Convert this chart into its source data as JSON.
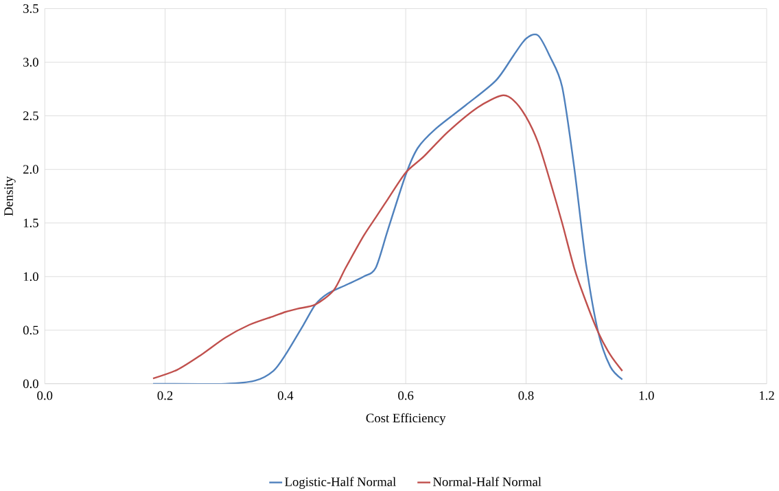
{
  "chart_data": {
    "type": "line",
    "xlabel": "Cost Efficiency",
    "ylabel": "Density",
    "xlim": [
      0,
      1.2
    ],
    "ylim": [
      0,
      3.5
    ],
    "xticks": [
      {
        "value": 0,
        "label": "0.0"
      },
      0.2,
      0.4,
      0.6,
      0.8,
      {
        "value": 1,
        "label": "1.0"
      },
      1.2
    ],
    "yticks": [
      {
        "value": 0,
        "label": "0.0"
      },
      0.5,
      {
        "value": 1,
        "label": "1.0"
      },
      1.5,
      {
        "value": 2,
        "label": "2.0"
      },
      2.5,
      {
        "value": 3,
        "label": "3.0"
      },
      3.5
    ],
    "grid": true,
    "legend": "bottom",
    "marker": "none",
    "line_style": "solid",
    "x": [
      0.18,
      0.3,
      0.35,
      0.38,
      0.4,
      0.43,
      0.45,
      0.47,
      0.5,
      0.53,
      0.55,
      0.57,
      0.6,
      0.62,
      0.65,
      0.7,
      0.75,
      0.78,
      0.8,
      0.82,
      0.84,
      0.86,
      0.88,
      0.9,
      0.92,
      0.94,
      0.96
    ],
    "series": [
      {
        "name": "Logistic-Half Normal",
        "color": "#4f81bd",
        "values": [
          0,
          0,
          0.03,
          0.12,
          0.27,
          0.55,
          0.74,
          0.84,
          0.92,
          1.0,
          1.08,
          1.43,
          1.95,
          2.2,
          2.38,
          2.6,
          2.83,
          3.07,
          3.22,
          3.25,
          3.05,
          2.77,
          2.02,
          1.11,
          0.48,
          0.16,
          0.04
        ]
      },
      {
        "name": "Normal-Half Normal",
        "color": "#c0504d",
        "x": [
          0.18,
          0.22,
          0.26,
          0.3,
          0.34,
          0.38,
          0.4,
          0.42,
          0.45,
          0.48,
          0.5,
          0.53,
          0.55,
          0.57,
          0.6,
          0.63,
          0.67,
          0.72,
          0.76,
          0.78,
          0.8,
          0.82,
          0.84,
          0.86,
          0.88,
          0.9,
          0.92,
          0.94,
          0.96
        ],
        "values": [
          0.05,
          0.13,
          0.27,
          0.43,
          0.55,
          0.63,
          0.67,
          0.7,
          0.74,
          0.87,
          1.08,
          1.38,
          1.55,
          1.72,
          1.97,
          2.12,
          2.35,
          2.58,
          2.69,
          2.64,
          2.49,
          2.25,
          1.89,
          1.5,
          1.08,
          0.76,
          0.48,
          0.27,
          0.12
        ]
      }
    ]
  }
}
